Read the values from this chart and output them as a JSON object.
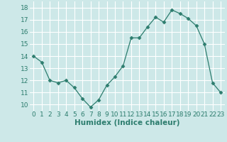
{
  "x": [
    0,
    1,
    2,
    3,
    4,
    5,
    6,
    7,
    8,
    9,
    10,
    11,
    12,
    13,
    14,
    15,
    16,
    17,
    18,
    19,
    20,
    21,
    22,
    23
  ],
  "y": [
    14.0,
    13.5,
    12.0,
    11.8,
    12.0,
    11.4,
    10.5,
    9.8,
    10.4,
    11.6,
    12.3,
    13.2,
    15.5,
    15.5,
    16.4,
    17.2,
    16.8,
    17.8,
    17.5,
    17.1,
    16.5,
    15.0,
    11.8,
    11.0
  ],
  "xlabel": "Humidex (Indice chaleur)",
  "ylim": [
    9.5,
    18.5
  ],
  "xlim": [
    -0.5,
    23.5
  ],
  "yticks": [
    10,
    11,
    12,
    13,
    14,
    15,
    16,
    17,
    18
  ],
  "xticks": [
    0,
    1,
    2,
    3,
    4,
    5,
    6,
    7,
    8,
    9,
    10,
    11,
    12,
    13,
    14,
    15,
    16,
    17,
    18,
    19,
    20,
    21,
    22,
    23
  ],
  "line_color": "#2d7d6e",
  "marker_color": "#2d7d6e",
  "bg_color": "#cde8e8",
  "grid_color": "#b0d8d8",
  "xlabel_color": "#2d7d6e",
  "tick_color": "#2d7d6e",
  "xlabel_fontsize": 7.5,
  "tick_fontsize": 6.5
}
